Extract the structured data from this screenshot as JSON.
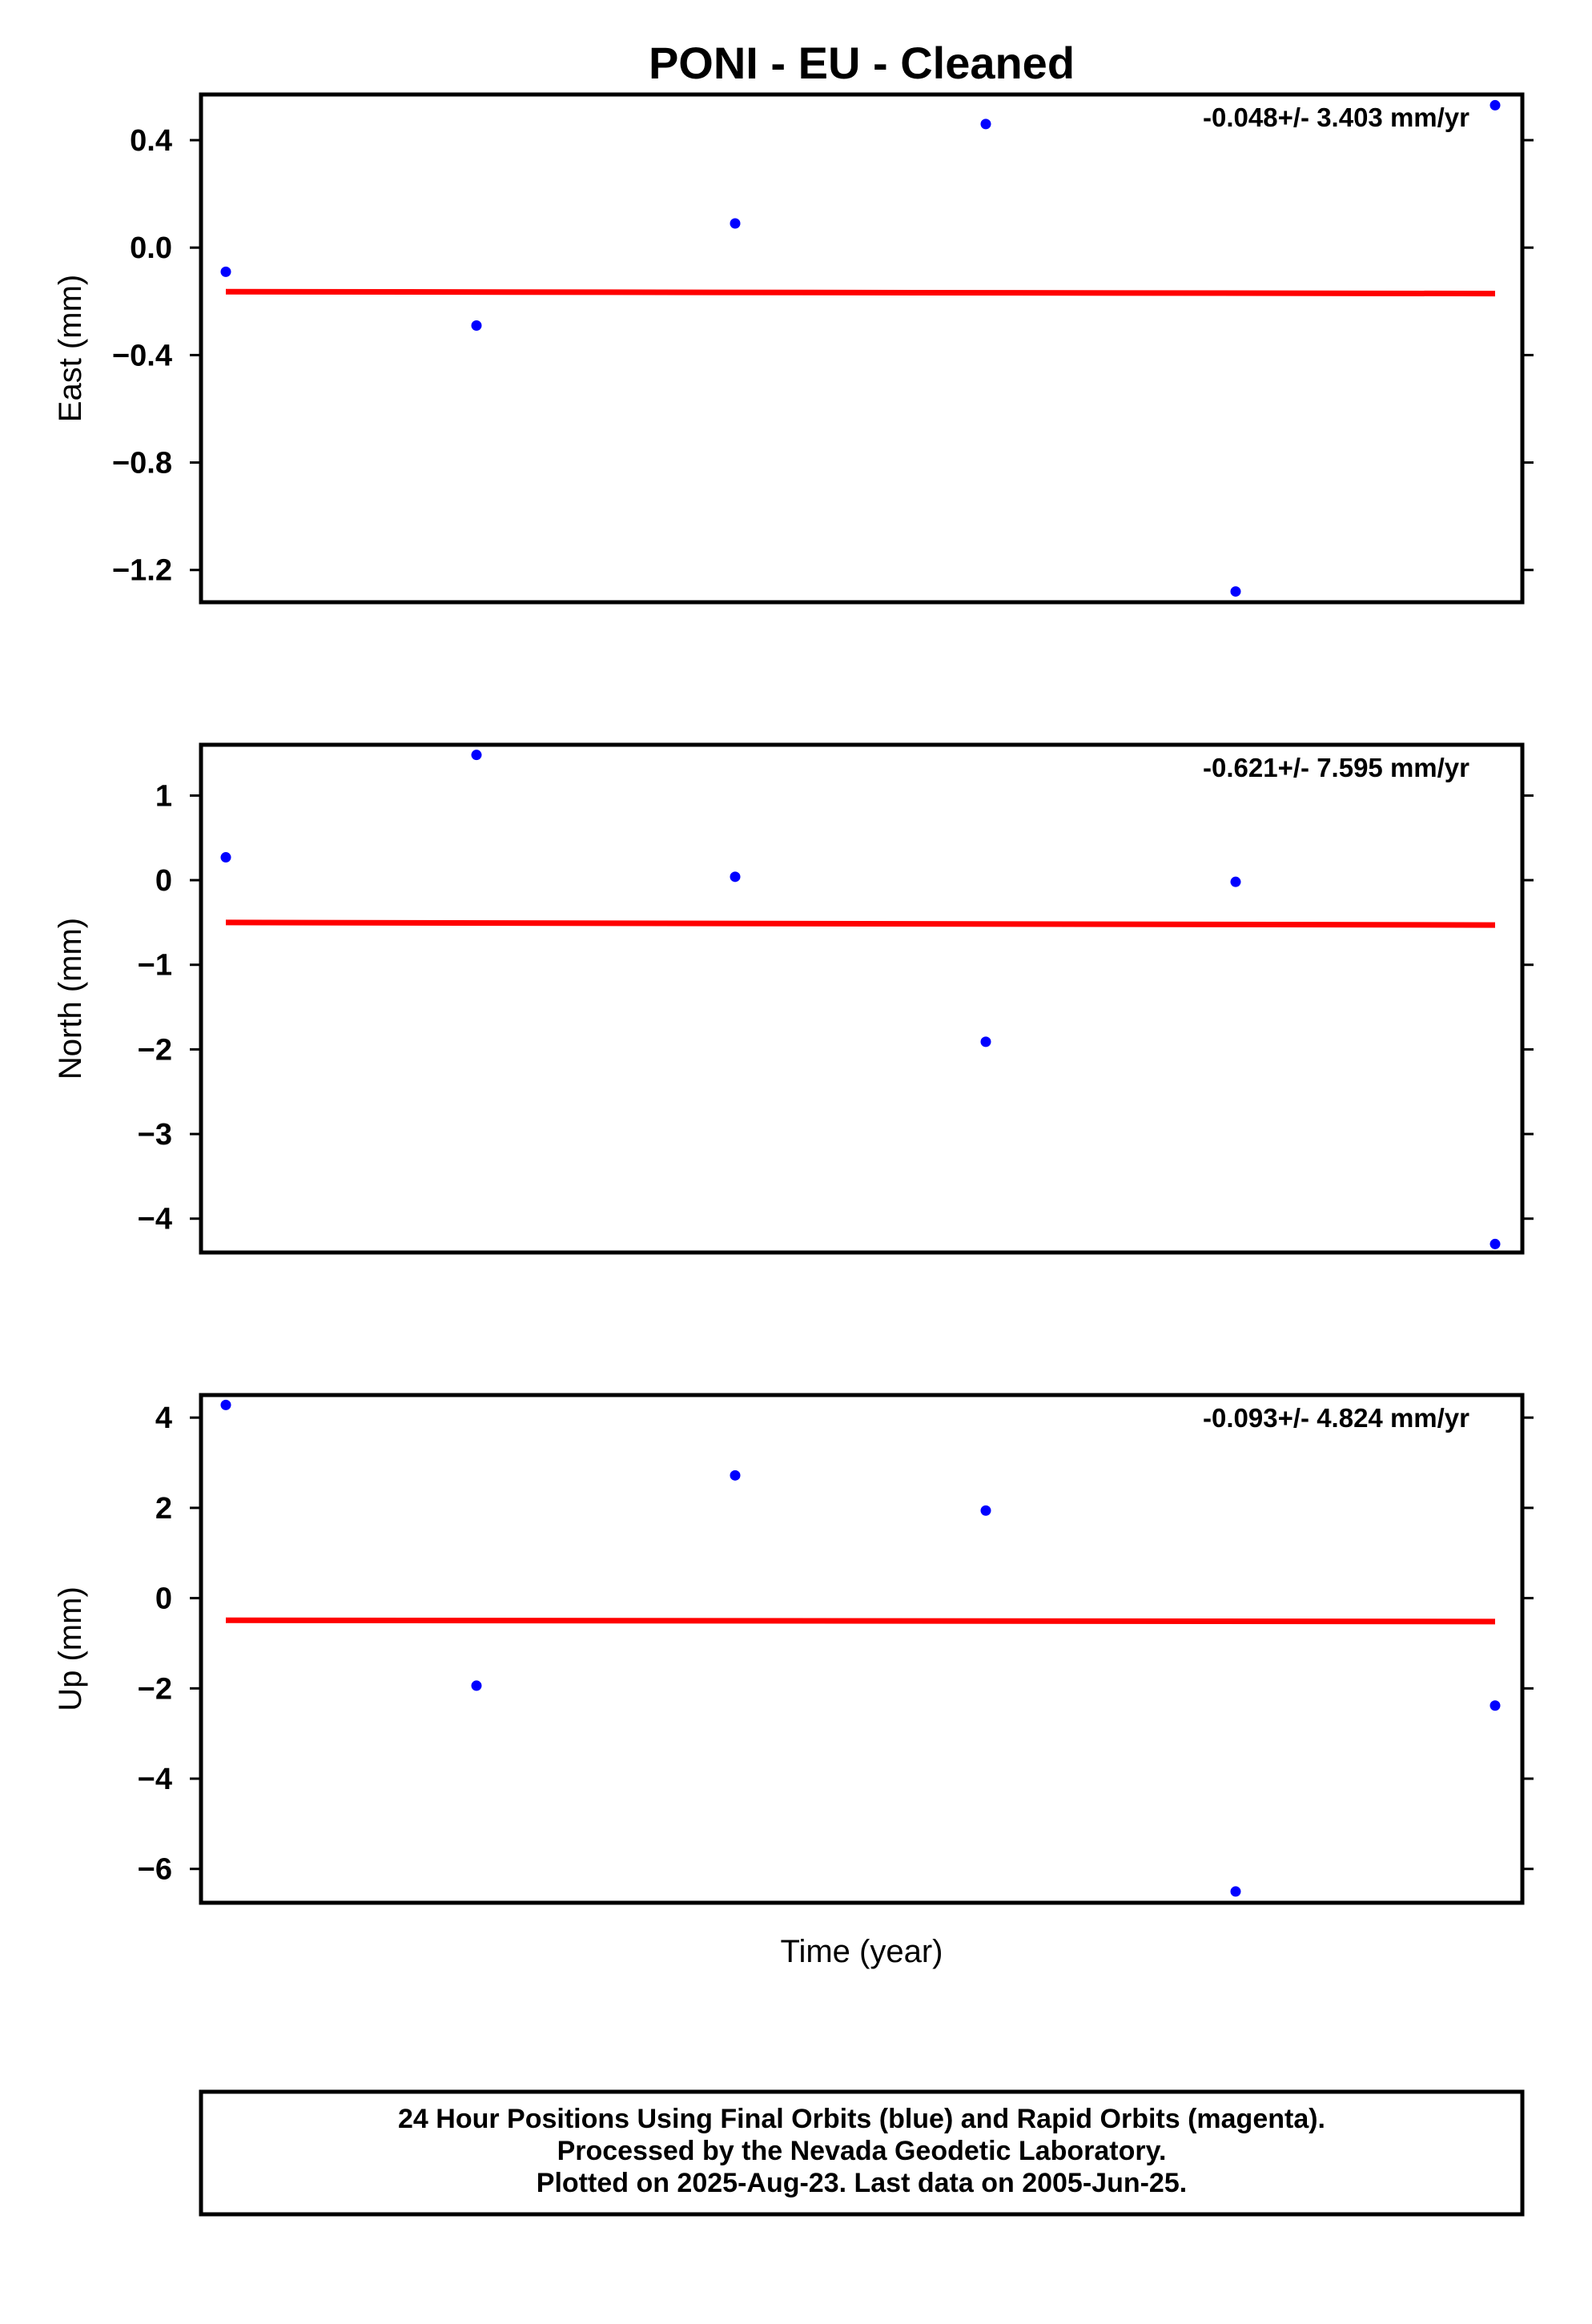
{
  "title": "PONI  - EU - Cleaned",
  "xlabel": "Time (year)",
  "footer": {
    "line1": "24 Hour Positions Using Final Orbits (blue) and Rapid Orbits (magenta).",
    "line2": "Processed by the Nevada Geodetic Laboratory.",
    "line3": "Plotted on 2025-Aug-23. Last data on 2005-Jun-25."
  },
  "colors": {
    "points": "#0000ff",
    "trend": "#ff0000",
    "frame": "#000000"
  },
  "chart_data": [
    {
      "type": "scatter",
      "ylabel": "East (mm)",
      "rate_label": "-0.048+/- 3.403 mm/yr",
      "ylim": [
        -1.32,
        0.57
      ],
      "yticks": [
        0.4,
        0.0,
        -0.4,
        -0.8,
        -1.2
      ],
      "ytick_labels": [
        "0.4",
        "0.0",
        "−0.4",
        "−0.8",
        "−1.2"
      ],
      "series": [
        {
          "x": [
            0,
            1,
            2,
            3,
            4,
            5
          ],
          "y": [
            -0.09,
            -0.29,
            0.09,
            0.46,
            -1.28,
            0.53
          ]
        }
      ],
      "trend": [
        -0.164,
        -0.171
      ]
    },
    {
      "type": "scatter",
      "ylabel": "North (mm)",
      "rate_label": "-0.621+/- 7.595 mm/yr",
      "ylim": [
        -4.4,
        1.6
      ],
      "yticks": [
        1,
        0,
        -1,
        -2,
        -3,
        -4
      ],
      "ytick_labels": [
        "1",
        "0",
        "−1",
        "−2",
        "−3",
        "−4"
      ],
      "series": [
        {
          "x": [
            0,
            1,
            2,
            3,
            4,
            5
          ],
          "y": [
            0.27,
            1.48,
            0.04,
            -1.91,
            -0.02,
            -4.3
          ]
        }
      ],
      "trend": [
        -0.5,
        -0.53
      ]
    },
    {
      "type": "scatter",
      "ylabel": "Up (mm)",
      "rate_label": "-0.093+/- 4.824 mm/yr",
      "ylim": [
        -6.75,
        4.5
      ],
      "yticks": [
        4,
        2,
        0,
        -2,
        -4,
        -6
      ],
      "ytick_labels": [
        "4",
        "2",
        "0",
        "−2",
        "−4",
        "−6"
      ],
      "series": [
        {
          "x": [
            0,
            1,
            2,
            3,
            4,
            5
          ],
          "y": [
            4.28,
            -1.94,
            2.72,
            1.94,
            -6.5,
            -2.38
          ]
        }
      ],
      "trend": [
        -0.49,
        -0.52
      ]
    }
  ]
}
